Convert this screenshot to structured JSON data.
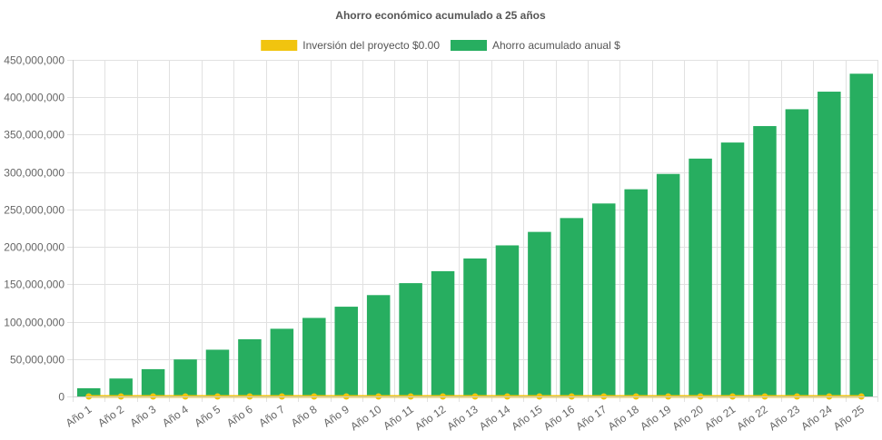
{
  "chart_data": {
    "type": "bar",
    "title": "Ahorro económico acumulado a 25 años",
    "categories": [
      "Año 1",
      "Año 2",
      "Año 3",
      "Año 4",
      "Año 5",
      "Año 6",
      "Año 7",
      "Año 8",
      "Año 9",
      "Año 10",
      "Año 11",
      "Año 12",
      "Año 13",
      "Año 14",
      "Año 15",
      "Año 16",
      "Año 17",
      "Año 18",
      "Año 19",
      "Año 20",
      "Año 21",
      "Año 22",
      "Año 23",
      "Año 24",
      "Año 25"
    ],
    "ylim": [
      0,
      450000000
    ],
    "yticks": [
      0,
      50000000,
      100000000,
      150000000,
      200000000,
      250000000,
      300000000,
      350000000,
      400000000,
      450000000
    ],
    "ytick_labels": [
      "0",
      "50,000,000",
      "100,000,000",
      "150,000,000",
      "200,000,000",
      "250,000,000",
      "300,000,000",
      "350,000,000",
      "400,000,000",
      "450,000,000"
    ],
    "grid": true,
    "legend_position": "top",
    "series": [
      {
        "name": "Inversión del proyecto $0.00",
        "type": "line",
        "color": "#f1c40f",
        "values": [
          0,
          0,
          0,
          0,
          0,
          0,
          0,
          0,
          0,
          0,
          0,
          0,
          0,
          0,
          0,
          0,
          0,
          0,
          0,
          0,
          0,
          0,
          0,
          0,
          0
        ]
      },
      {
        "name": "Ahorro acumulado anual $",
        "type": "bar",
        "color": "#27ae60",
        "values": [
          11000000,
          24000000,
          36500000,
          49500000,
          62500000,
          76500000,
          90500000,
          105000000,
          120000000,
          135500000,
          151500000,
          167500000,
          184500000,
          202000000,
          220000000,
          238500000,
          258000000,
          277000000,
          297500000,
          318000000,
          339500000,
          361500000,
          384000000,
          407500000,
          431500000
        ]
      }
    ]
  }
}
